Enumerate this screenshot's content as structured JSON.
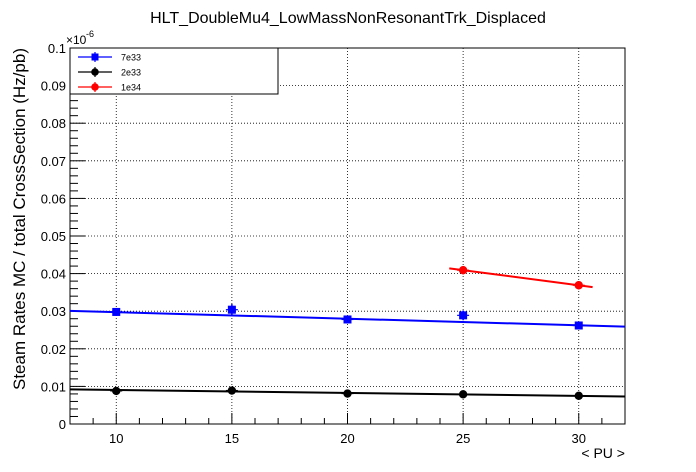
{
  "chart_data": {
    "type": "scatter",
    "title": "HLT_DoubleMu4_LowMassNonResonantTrk_Displaced",
    "xlabel": "< PU >",
    "ylabel": "Steam Rates MC / total CrossSection (Hz/pb)",
    "y_exponent_label": "×10",
    "y_exponent_power": "-6",
    "xlim": [
      8,
      32
    ],
    "ylim": [
      0,
      0.1
    ],
    "x_ticks": [
      10,
      15,
      20,
      25,
      30
    ],
    "y_ticks": [
      0,
      0.01,
      0.02,
      0.03,
      0.04,
      0.05,
      0.06,
      0.07,
      0.08,
      0.09,
      0.1
    ],
    "x_tick_labels": [
      "10",
      "15",
      "20",
      "25",
      "30"
    ],
    "y_tick_labels": [
      "0",
      "0.01",
      "0.02",
      "0.03",
      "0.04",
      "0.05",
      "0.06",
      "0.07",
      "0.08",
      "0.09",
      "0.1"
    ],
    "grid": true,
    "legend_position": "top-left",
    "series": [
      {
        "name": "7e33",
        "color": "#0000ff",
        "marker": "square",
        "x": [
          10,
          15,
          20,
          25,
          30
        ],
        "y": [
          0.0298,
          0.0304,
          0.0278,
          0.0289,
          0.0262
        ],
        "err": [
          0.0007,
          0.0015,
          0.0008,
          0.0013,
          0.0008
        ],
        "fit": {
          "x": [
            8,
            32
          ],
          "y": [
            0.0301,
            0.0259
          ]
        }
      },
      {
        "name": "2e33",
        "color": "#000000",
        "marker": "circle",
        "x": [
          10,
          15,
          20,
          25,
          30
        ],
        "y": [
          0.0088,
          0.0089,
          0.0081,
          0.0079,
          0.0075
        ],
        "err": [
          0.0004,
          0.0004,
          0.0004,
          0.0004,
          0.0004
        ],
        "fit": {
          "x": [
            8,
            32
          ],
          "y": [
            0.0092,
            0.0073
          ]
        }
      },
      {
        "name": "1e34",
        "color": "#ff0000",
        "marker": "circle",
        "x": [
          25,
          30
        ],
        "y": [
          0.0409,
          0.0369
        ],
        "err": [
          0.0011,
          0.0011
        ],
        "fit": {
          "x": [
            24.4,
            30.6
          ],
          "y": [
            0.0414,
            0.0364
          ]
        }
      }
    ]
  }
}
